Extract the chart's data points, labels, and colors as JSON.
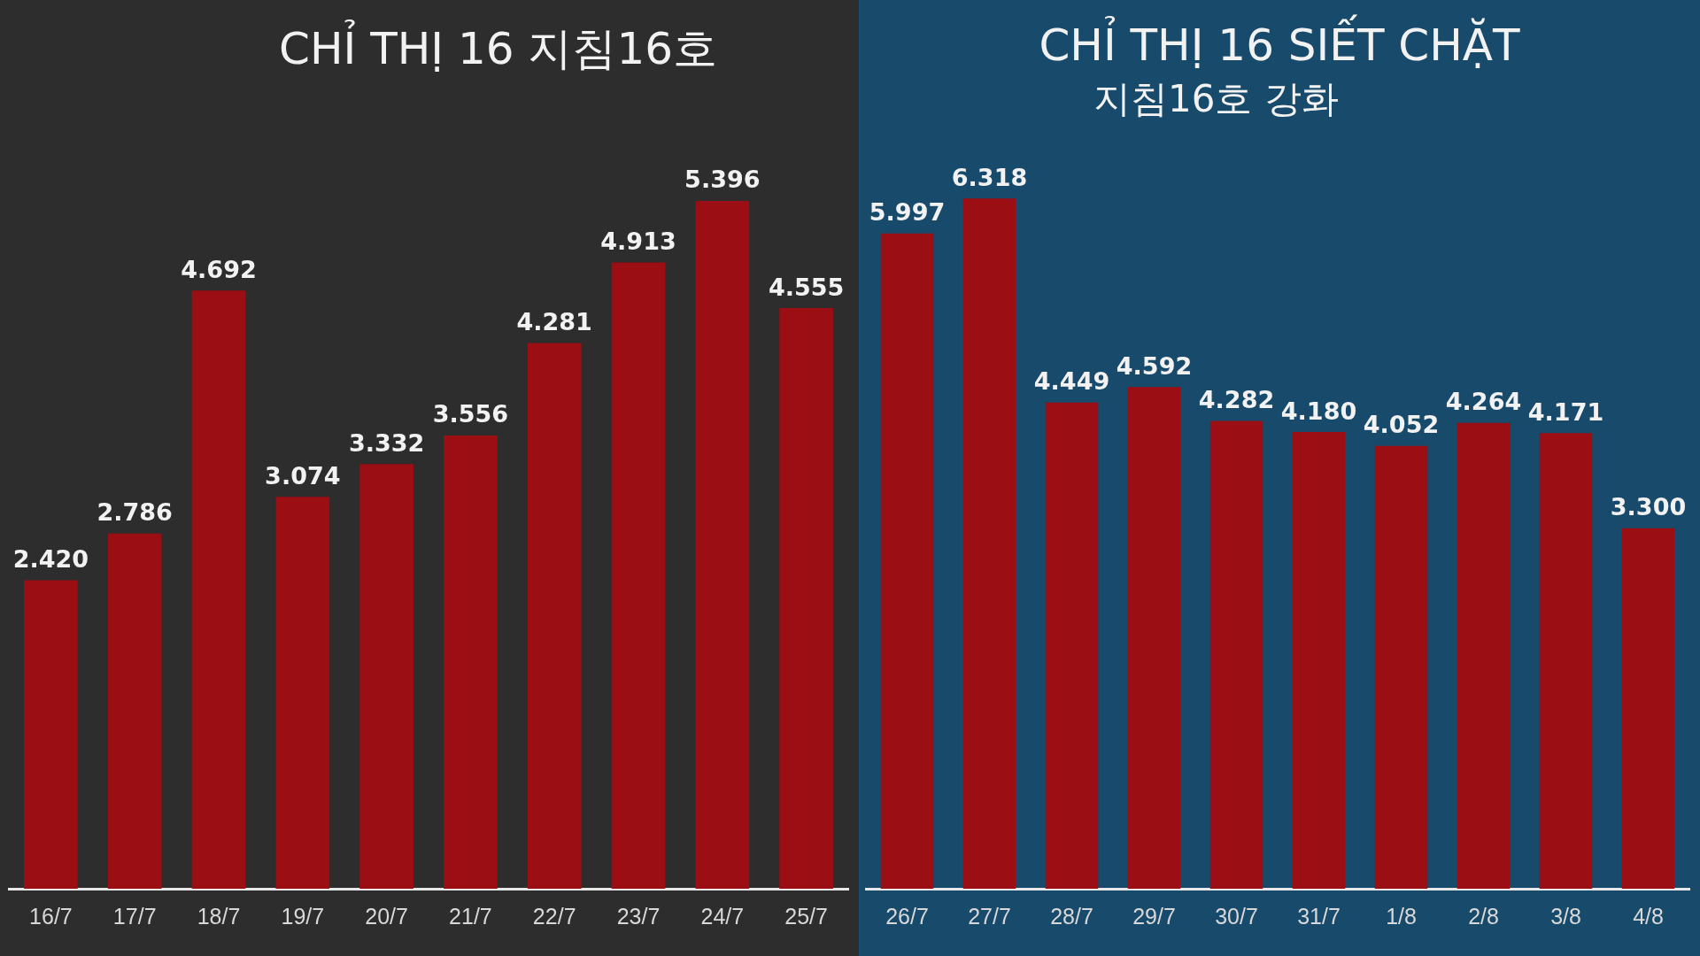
{
  "chart_data": [
    {
      "type": "bar",
      "title": "CHỈ THỊ 16 지침16호",
      "categories": [
        "16/7",
        "17/7",
        "18/7",
        "19/7",
        "20/7",
        "21/7",
        "22/7",
        "23/7",
        "24/7",
        "25/7"
      ],
      "values": [
        2420,
        2786,
        4692,
        3074,
        3332,
        3556,
        4281,
        4913,
        5396,
        4555
      ],
      "value_labels": [
        "2.420",
        "2.786",
        "4.692",
        "3.074",
        "3.332",
        "3.556",
        "4.281",
        "4.913",
        "5.396",
        "4.555"
      ],
      "color": "#9a0e14",
      "legend": false,
      "grid": false
    },
    {
      "type": "bar",
      "title": "CHỈ THỊ 16 SIẾT CHẶT",
      "subtitle": "지침16호 강화",
      "categories": [
        "26/7",
        "27/7",
        "28/7",
        "29/7",
        "30/7",
        "31/7",
        "1/8",
        "2/8",
        "3/8",
        "4/8"
      ],
      "values": [
        5997,
        6318,
        4449,
        4592,
        4282,
        4180,
        4052,
        4264,
        4171,
        3300
      ],
      "value_labels": [
        "5.997",
        "6.318",
        "4.449",
        "4.592",
        "4.282",
        "4.180",
        "4.052",
        "4.264",
        "4.171",
        "3.300"
      ],
      "color": "#9a0e14",
      "legend": false,
      "grid": false
    }
  ]
}
